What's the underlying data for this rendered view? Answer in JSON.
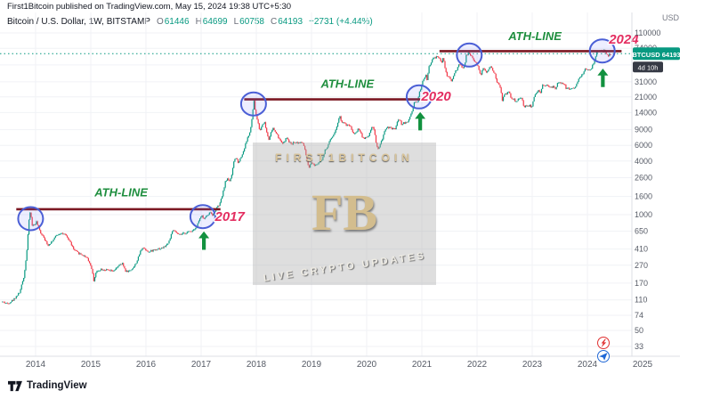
{
  "meta": {
    "attribution": "First1Bitcoin published on TradingView.com, May 15, 2024 19:38 UTC+5:30"
  },
  "legend": {
    "symbol": "Bitcoin / U.S. Dollar, 1W, BITSTAMP",
    "items": [
      {
        "label": "O",
        "value": "61446"
      },
      {
        "label": "H",
        "value": "64699"
      },
      {
        "label": "L",
        "value": "60758"
      },
      {
        "label": "C",
        "value": "64193"
      }
    ],
    "change": "+2731 (+4.44%)"
  },
  "price_axis": {
    "currency": "USD",
    "badge": {
      "symbol": "BTCUSD",
      "value": "64193"
    },
    "countdown": "4d 10h"
  },
  "time_axis": {
    "years": [
      "2014",
      "2015",
      "2016",
      "2017",
      "2018",
      "2019",
      "2020",
      "2021",
      "2022",
      "2023",
      "2024",
      "2025"
    ]
  },
  "watermark": {
    "line1": "FIRST1BITCOIN",
    "monogram": "FB",
    "line2": "LIVE CRYPTO UPDATES"
  },
  "footer": {
    "brand": "TradingView"
  },
  "colors": {
    "up": "#089981",
    "down": "#f23645",
    "grid": "#f0f2f6",
    "ath_line": "#7c1823",
    "ath_text": "#1e8e3e",
    "year_text": "#e32d60",
    "circle": "#4b5fd6",
    "arrow": "#12913f",
    "badge_bg": "#089981",
    "countdown_bg": "#363a45",
    "axis_text": "#565b66"
  },
  "annotations": {
    "ath_label_text": "ATH-LINE",
    "ath_lines": [
      {
        "price": 1150,
        "from": 2013.65,
        "to": 2017.35
      },
      {
        "price": 19700,
        "from": 2017.78,
        "to": 2020.97
      },
      {
        "price": 68700,
        "from": 2021.32,
        "to": 2024.62
      }
    ],
    "circles": [
      {
        "t": 2013.91,
        "price": 900
      },
      {
        "t": 2017.03,
        "price": 950
      },
      {
        "t": 2017.95,
        "price": 17500
      },
      {
        "t": 2020.95,
        "price": 21000
      },
      {
        "t": 2021.86,
        "price": 62000
      },
      {
        "t": 2024.27,
        "price": 69000
      }
    ],
    "arrows": [
      {
        "t": 2017.05,
        "price": 660
      },
      {
        "t": 2020.97,
        "price": 14500
      },
      {
        "t": 2024.28,
        "price": 44500
      }
    ],
    "ath_labels": [
      {
        "t": 2015.55,
        "price": 1600
      },
      {
        "t": 2019.65,
        "price": 26500
      },
      {
        "t": 2023.05,
        "price": 91000
      }
    ],
    "year_labels": [
      {
        "t": 2017.52,
        "price": 950,
        "text": "2017"
      },
      {
        "t": 2021.26,
        "price": 21500,
        "text": "2020"
      },
      {
        "t": 2024.66,
        "price": 93000,
        "text": "2024"
      }
    ]
  },
  "chart_data": {
    "type": "candlestick",
    "title": "Bitcoin / U.S. Dollar, 1W, BITSTAMP",
    "symbol": "BTCUSD",
    "timeframe": "1W",
    "scale": "log",
    "ylim": [
      33,
      110000
    ],
    "y_ticks": [
      110000,
      74000,
      48000,
      31000,
      21000,
      14000,
      9000,
      6000,
      4000,
      2600,
      1600,
      1000,
      650,
      410,
      270,
      170,
      110,
      74,
      50,
      33
    ],
    "t_start": 2013.4,
    "t_end": 2024.42,
    "last": {
      "open": 61446,
      "high": 64699,
      "low": 60758,
      "close": 64193,
      "change": 2731,
      "change_pct": 4.44
    },
    "anchors": [
      [
        2013.4,
        105
      ],
      [
        2013.5,
        100
      ],
      [
        2013.6,
        110
      ],
      [
        2013.72,
        135
      ],
      [
        2013.8,
        210
      ],
      [
        2013.85,
        420
      ],
      [
        2013.88,
        800
      ],
      [
        2013.91,
        1120
      ],
      [
        2013.94,
        760
      ],
      [
        2013.98,
        760
      ],
      [
        2014.02,
        830
      ],
      [
        2014.06,
        700
      ],
      [
        2014.1,
        620
      ],
      [
        2014.15,
        570
      ],
      [
        2014.22,
        450
      ],
      [
        2014.3,
        500
      ],
      [
        2014.38,
        580
      ],
      [
        2014.46,
        630
      ],
      [
        2014.54,
        590
      ],
      [
        2014.62,
        510
      ],
      [
        2014.7,
        400
      ],
      [
        2014.78,
        370
      ],
      [
        2014.86,
        350
      ],
      [
        2014.94,
        330
      ],
      [
        2015.02,
        250
      ],
      [
        2015.06,
        180
      ],
      [
        2015.1,
        225
      ],
      [
        2015.18,
        245
      ],
      [
        2015.26,
        240
      ],
      [
        2015.34,
        235
      ],
      [
        2015.42,
        230
      ],
      [
        2015.5,
        265
      ],
      [
        2015.58,
        280
      ],
      [
        2015.64,
        230
      ],
      [
        2015.72,
        235
      ],
      [
        2015.8,
        265
      ],
      [
        2015.86,
        320
      ],
      [
        2015.9,
        380
      ],
      [
        2015.94,
        430
      ],
      [
        2015.98,
        415
      ],
      [
        2016.06,
        380
      ],
      [
        2016.14,
        400
      ],
      [
        2016.22,
        415
      ],
      [
        2016.3,
        420
      ],
      [
        2016.38,
        455
      ],
      [
        2016.44,
        530
      ],
      [
        2016.48,
        660
      ],
      [
        2016.54,
        640
      ],
      [
        2016.6,
        590
      ],
      [
        2016.68,
        610
      ],
      [
        2016.76,
        635
      ],
      [
        2016.84,
        660
      ],
      [
        2016.92,
        730
      ],
      [
        2016.98,
        900
      ],
      [
        2017.02,
        960
      ],
      [
        2017.06,
        890
      ],
      [
        2017.12,
        1000
      ],
      [
        2017.18,
        1070
      ],
      [
        2017.22,
        980
      ],
      [
        2017.28,
        1180
      ],
      [
        2017.34,
        1290
      ],
      [
        2017.4,
        1750
      ],
      [
        2017.44,
        2300
      ],
      [
        2017.48,
        2550
      ],
      [
        2017.52,
        2400
      ],
      [
        2017.56,
        2750
      ],
      [
        2017.6,
        4050
      ],
      [
        2017.64,
        4350
      ],
      [
        2017.68,
        3850
      ],
      [
        2017.72,
        4350
      ],
      [
        2017.76,
        4900
      ],
      [
        2017.8,
        5900
      ],
      [
        2017.84,
        7150
      ],
      [
        2017.88,
        8050
      ],
      [
        2017.91,
        9800
      ],
      [
        2017.94,
        14400
      ],
      [
        2017.96,
        19200
      ],
      [
        2017.99,
        14100
      ],
      [
        2018.03,
        11200
      ],
      [
        2018.07,
        8600
      ],
      [
        2018.11,
        10200
      ],
      [
        2018.15,
        11100
      ],
      [
        2018.19,
        8600
      ],
      [
        2018.23,
        7000
      ],
      [
        2018.27,
        8300
      ],
      [
        2018.31,
        9300
      ],
      [
        2018.35,
        8500
      ],
      [
        2018.4,
        7500
      ],
      [
        2018.45,
        6500
      ],
      [
        2018.5,
        6400
      ],
      [
        2018.55,
        7400
      ],
      [
        2018.6,
        6500
      ],
      [
        2018.65,
        6250
      ],
      [
        2018.7,
        6550
      ],
      [
        2018.75,
        6450
      ],
      [
        2018.8,
        6400
      ],
      [
        2018.85,
        6350
      ],
      [
        2018.88,
        5600
      ],
      [
        2018.92,
        4050
      ],
      [
        2018.96,
        3250
      ],
      [
        2019.0,
        3850
      ],
      [
        2019.05,
        3600
      ],
      [
        2019.1,
        3700
      ],
      [
        2019.15,
        4000
      ],
      [
        2019.2,
        4100
      ],
      [
        2019.25,
        5250
      ],
      [
        2019.3,
        5850
      ],
      [
        2019.35,
        7100
      ],
      [
        2019.4,
        7950
      ],
      [
        2019.44,
        8700
      ],
      [
        2019.48,
        10800
      ],
      [
        2019.52,
        12900
      ],
      [
        2019.55,
        10800
      ],
      [
        2019.6,
        10600
      ],
      [
        2019.64,
        10100
      ],
      [
        2019.68,
        10300
      ],
      [
        2019.72,
        9600
      ],
      [
        2019.76,
        8250
      ],
      [
        2019.81,
        8300
      ],
      [
        2019.85,
        9250
      ],
      [
        2019.89,
        8650
      ],
      [
        2019.93,
        7300
      ],
      [
        2019.97,
        7250
      ],
      [
        2020.02,
        7350
      ],
      [
        2020.06,
        8350
      ],
      [
        2020.1,
        9900
      ],
      [
        2020.14,
        8900
      ],
      [
        2020.18,
        6200
      ],
      [
        2020.21,
        5300
      ],
      [
        2020.25,
        6250
      ],
      [
        2020.29,
        6900
      ],
      [
        2020.33,
        8800
      ],
      [
        2020.37,
        9600
      ],
      [
        2020.42,
        9450
      ],
      [
        2020.47,
        9150
      ],
      [
        2020.52,
        9200
      ],
      [
        2020.56,
        11050
      ],
      [
        2020.6,
        11800
      ],
      [
        2020.64,
        10300
      ],
      [
        2020.68,
        10750
      ],
      [
        2020.72,
        10700
      ],
      [
        2020.76,
        11400
      ],
      [
        2020.8,
        13050
      ],
      [
        2020.84,
        15500
      ],
      [
        2020.87,
        18700
      ],
      [
        2020.9,
        18300
      ],
      [
        2020.93,
        19150
      ],
      [
        2020.96,
        23800
      ],
      [
        2020.99,
        26500
      ],
      [
        2021.02,
        31500
      ],
      [
        2021.05,
        34300
      ],
      [
        2021.08,
        38100
      ],
      [
        2021.1,
        32100
      ],
      [
        2021.13,
        46300
      ],
      [
        2021.16,
        48600
      ],
      [
        2021.19,
        55900
      ],
      [
        2021.22,
        57300
      ],
      [
        2021.25,
        58100
      ],
      [
        2021.28,
        58900
      ],
      [
        2021.31,
        59000
      ],
      [
        2021.33,
        56200
      ],
      [
        2021.36,
        49900
      ],
      [
        2021.39,
        57800
      ],
      [
        2021.42,
        46700
      ],
      [
        2021.45,
        37300
      ],
      [
        2021.48,
        35600
      ],
      [
        2021.51,
        34700
      ],
      [
        2021.54,
        31600
      ],
      [
        2021.57,
        34300
      ],
      [
        2021.6,
        39900
      ],
      [
        2021.63,
        42200
      ],
      [
        2021.66,
        46300
      ],
      [
        2021.69,
        48900
      ],
      [
        2021.72,
        47100
      ],
      [
        2021.75,
        43800
      ],
      [
        2021.78,
        48200
      ],
      [
        2021.81,
        61500
      ],
      [
        2021.84,
        64400
      ],
      [
        2021.87,
        65500
      ],
      [
        2021.89,
        59700
      ],
      [
        2021.92,
        58700
      ],
      [
        2021.95,
        54000
      ],
      [
        2021.98,
        50400
      ],
      [
        2022.01,
        47300
      ],
      [
        2022.04,
        43100
      ],
      [
        2022.07,
        35100
      ],
      [
        2022.1,
        42400
      ],
      [
        2022.13,
        44000
      ],
      [
        2022.16,
        40100
      ],
      [
        2022.19,
        39300
      ],
      [
        2022.22,
        44500
      ],
      [
        2022.25,
        46300
      ],
      [
        2022.28,
        42300
      ],
      [
        2022.31,
        39700
      ],
      [
        2022.34,
        36000
      ],
      [
        2022.37,
        30100
      ],
      [
        2022.4,
        29000
      ],
      [
        2022.43,
        26700
      ],
      [
        2022.46,
        19000
      ],
      [
        2022.49,
        21500
      ],
      [
        2022.52,
        22500
      ],
      [
        2022.55,
        23300
      ],
      [
        2022.58,
        24400
      ],
      [
        2022.61,
        21300
      ],
      [
        2022.64,
        20000
      ],
      [
        2022.67,
        19800
      ],
      [
        2022.7,
        18800
      ],
      [
        2022.73,
        19400
      ],
      [
        2022.76,
        19600
      ],
      [
        2022.79,
        20800
      ],
      [
        2022.82,
        20600
      ],
      [
        2022.85,
        16300
      ],
      [
        2022.88,
        16700
      ],
      [
        2022.91,
        16500
      ],
      [
        2022.94,
        16850
      ],
      [
        2022.97,
        16550
      ],
      [
        2023.0,
        16600
      ],
      [
        2023.04,
        21100
      ],
      [
        2023.08,
        22800
      ],
      [
        2023.12,
        24600
      ],
      [
        2023.15,
        22200
      ],
      [
        2023.19,
        28300
      ],
      [
        2023.23,
        27600
      ],
      [
        2023.27,
        29400
      ],
      [
        2023.31,
        27600
      ],
      [
        2023.35,
        26900
      ],
      [
        2023.39,
        27200
      ],
      [
        2023.43,
        26300
      ],
      [
        2023.47,
        30500
      ],
      [
        2023.51,
        30300
      ],
      [
        2023.55,
        29200
      ],
      [
        2023.59,
        29400
      ],
      [
        2023.62,
        26000
      ],
      [
        2023.66,
        26100
      ],
      [
        2023.7,
        25900
      ],
      [
        2023.74,
        26600
      ],
      [
        2023.78,
        27000
      ],
      [
        2023.82,
        29900
      ],
      [
        2023.86,
        34700
      ],
      [
        2023.9,
        37100
      ],
      [
        2023.93,
        37800
      ],
      [
        2023.97,
        43700
      ],
      [
        2024.0,
        42300
      ],
      [
        2024.03,
        42900
      ],
      [
        2024.07,
        42600
      ],
      [
        2024.1,
        47700
      ],
      [
        2024.13,
        52100
      ],
      [
        2024.16,
        62500
      ],
      [
        2024.19,
        68300
      ],
      [
        2024.22,
        68500
      ],
      [
        2024.25,
        69900
      ],
      [
        2024.28,
        67200
      ],
      [
        2024.31,
        69600
      ],
      [
        2024.34,
        63800
      ],
      [
        2024.37,
        60700
      ],
      [
        2024.4,
        61446
      ],
      [
        2024.42,
        64193
      ]
    ]
  }
}
